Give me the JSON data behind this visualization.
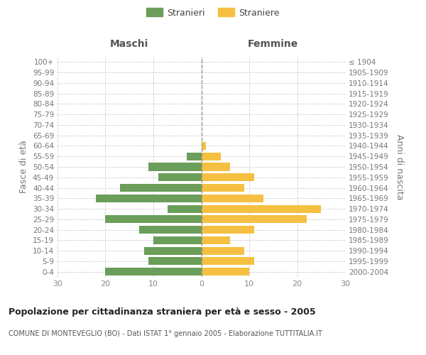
{
  "age_groups": [
    "0-4",
    "5-9",
    "10-14",
    "15-19",
    "20-24",
    "25-29",
    "30-34",
    "35-39",
    "40-44",
    "45-49",
    "50-54",
    "55-59",
    "60-64",
    "65-69",
    "70-74",
    "75-79",
    "80-84",
    "85-89",
    "90-94",
    "95-99",
    "100+"
  ],
  "birth_years": [
    "2000-2004",
    "1995-1999",
    "1990-1994",
    "1985-1989",
    "1980-1984",
    "1975-1979",
    "1970-1974",
    "1965-1969",
    "1960-1964",
    "1955-1959",
    "1950-1954",
    "1945-1949",
    "1940-1944",
    "1935-1939",
    "1930-1934",
    "1925-1929",
    "1920-1924",
    "1915-1919",
    "1910-1914",
    "1905-1909",
    "≤ 1904"
  ],
  "males": [
    20,
    11,
    12,
    10,
    13,
    20,
    7,
    22,
    17,
    9,
    11,
    3,
    0,
    0,
    0,
    0,
    0,
    0,
    0,
    0,
    0
  ],
  "females": [
    10,
    11,
    9,
    6,
    11,
    22,
    25,
    13,
    9,
    11,
    6,
    4,
    1,
    0,
    0,
    0,
    0,
    0,
    0,
    0,
    0
  ],
  "male_color": "#6a9e5a",
  "female_color": "#f5c042",
  "title": "Popolazione per cittadinanza straniera per età e sesso - 2005",
  "subtitle": "COMUNE DI MONTEVEGLIO (BO) - Dati ISTAT 1° gennaio 2005 - Elaborazione TUTTITALIA.IT",
  "ylabel_left": "Fasce di età",
  "ylabel_right": "Anni di nascita",
  "xlabel_maschi": "Maschi",
  "xlabel_femmine": "Femmine",
  "legend_maschi": "Stranieri",
  "legend_femmine": "Straniere",
  "xlim": 30,
  "background_color": "#ffffff",
  "grid_color": "#cccccc",
  "tick_color": "#888888",
  "label_color": "#777777"
}
